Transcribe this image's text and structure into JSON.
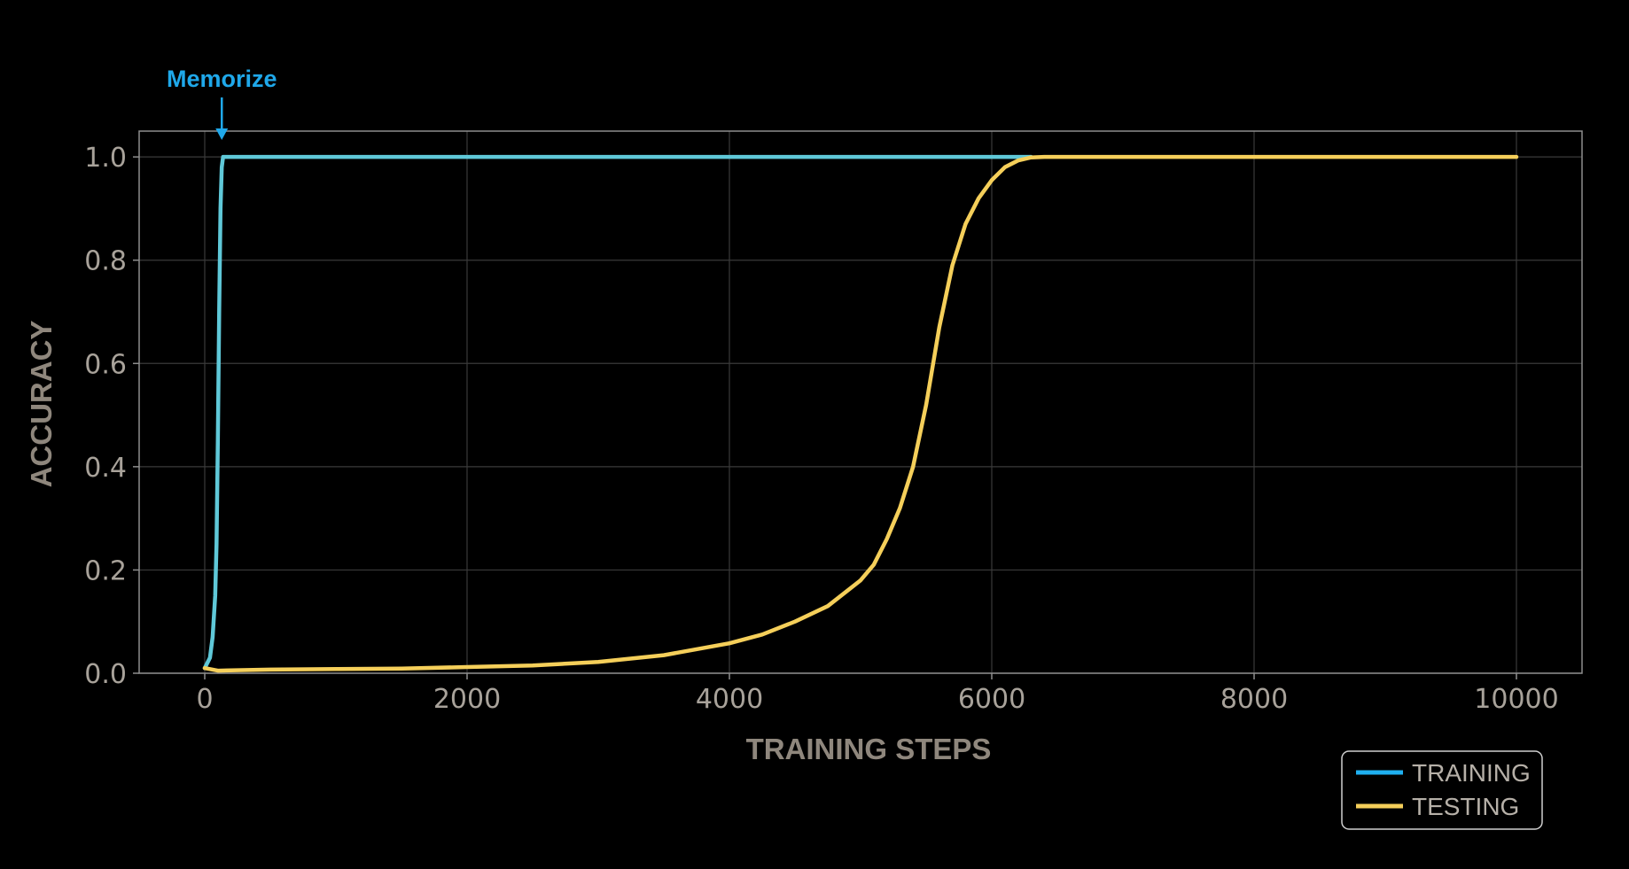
{
  "chart_data": {
    "type": "line",
    "xlabel": "TRAINING STEPS",
    "ylabel": "ACCURACY",
    "xlim": [
      -500,
      10500
    ],
    "ylim": [
      0.0,
      1.05
    ],
    "x_ticks": [
      0,
      2000,
      4000,
      6000,
      8000,
      10000
    ],
    "x_tick_labels": [
      "0",
      "2000",
      "4000",
      "6000",
      "8000",
      "10000"
    ],
    "y_ticks": [
      0.0,
      0.2,
      0.4,
      0.6,
      0.8,
      1.0
    ],
    "y_tick_labels": [
      "0.0",
      "0.2",
      "0.4",
      "0.6",
      "0.8",
      "1.0"
    ],
    "grid": true,
    "legend_position": "bottom-right",
    "series": [
      {
        "name": "TRAINING",
        "color": "#5fc8d8",
        "legend_color": "#1fb0f0",
        "x": [
          0,
          40,
          60,
          80,
          90,
          100,
          110,
          120,
          130,
          140,
          150,
          500,
          1500,
          3000,
          5000,
          6300
        ],
        "y": [
          0.01,
          0.03,
          0.07,
          0.15,
          0.25,
          0.45,
          0.7,
          0.9,
          0.98,
          1.0,
          1.0,
          1.0,
          1.0,
          1.0,
          1.0,
          1.0
        ]
      },
      {
        "name": "TESTING",
        "color": "#f5cf5a",
        "legend_color": "#f5cf5a",
        "x": [
          0,
          100,
          500,
          1000,
          1500,
          2000,
          2500,
          3000,
          3500,
          4000,
          4250,
          4500,
          4750,
          5000,
          5100,
          5200,
          5300,
          5400,
          5500,
          5600,
          5700,
          5800,
          5900,
          6000,
          6100,
          6200,
          6300,
          6400,
          6500,
          7000,
          8000,
          9000,
          10000
        ],
        "y": [
          0.01,
          0.005,
          0.007,
          0.008,
          0.009,
          0.012,
          0.015,
          0.022,
          0.035,
          0.058,
          0.075,
          0.1,
          0.13,
          0.18,
          0.21,
          0.26,
          0.32,
          0.4,
          0.52,
          0.67,
          0.79,
          0.87,
          0.92,
          0.955,
          0.98,
          0.993,
          0.999,
          1.0,
          1.0,
          1.0,
          1.0,
          1.0,
          1.0
        ]
      }
    ],
    "annotations": [
      {
        "text": "Memorize",
        "x": 130,
        "y": 1.0,
        "color": "#1fa8ea"
      }
    ]
  }
}
